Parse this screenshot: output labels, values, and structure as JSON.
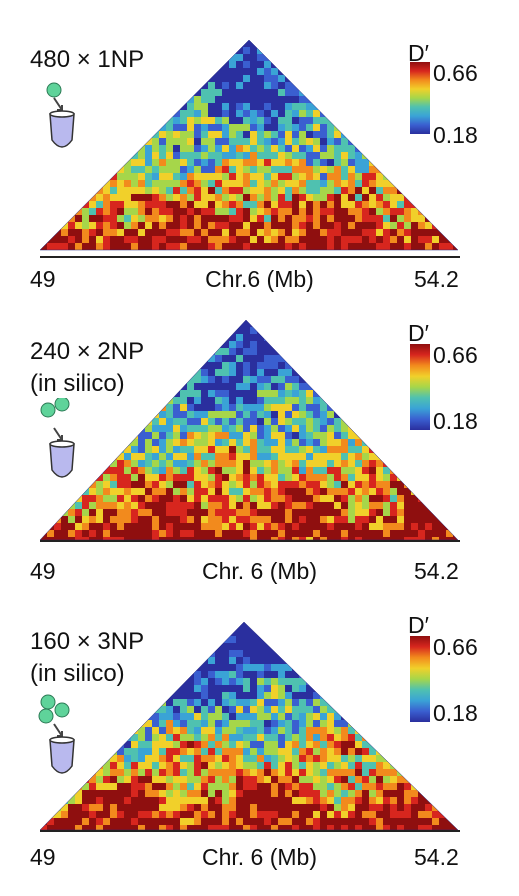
{
  "colors": {
    "scale": [
      "#2a2f9e",
      "#3a5fd0",
      "#3aa3d6",
      "#4fc1b0",
      "#a6d64a",
      "#f1d02a",
      "#f28a1d",
      "#d7261e",
      "#8f0f0f"
    ],
    "icon_bead": "#5fd39a",
    "icon_tube": "#b9b9ee"
  },
  "panels": [
    {
      "label": "480 × 1NP",
      "beads": 1,
      "axis_start": "49",
      "axis_end": "54.2",
      "axis_title": "Chr.6 (Mb)",
      "colorbar": {
        "title": "D′",
        "max": "0.66",
        "min": "0.18"
      }
    },
    {
      "label": "240 × 2NP\n(in silico)",
      "beads": 2,
      "axis_start": "49",
      "axis_end": "54.2",
      "axis_title": "Chr. 6 (Mb)",
      "colorbar": {
        "title": "D′",
        "max": "0.66",
        "min": "0.18"
      }
    },
    {
      "label": "160 × 3NP\n(in silico)",
      "beads": 3,
      "axis_start": "49",
      "axis_end": "54.2",
      "axis_title": "Chr. 6 (Mb)",
      "colorbar": {
        "title": "D′",
        "max": "0.66",
        "min": "0.18"
      }
    }
  ]
}
